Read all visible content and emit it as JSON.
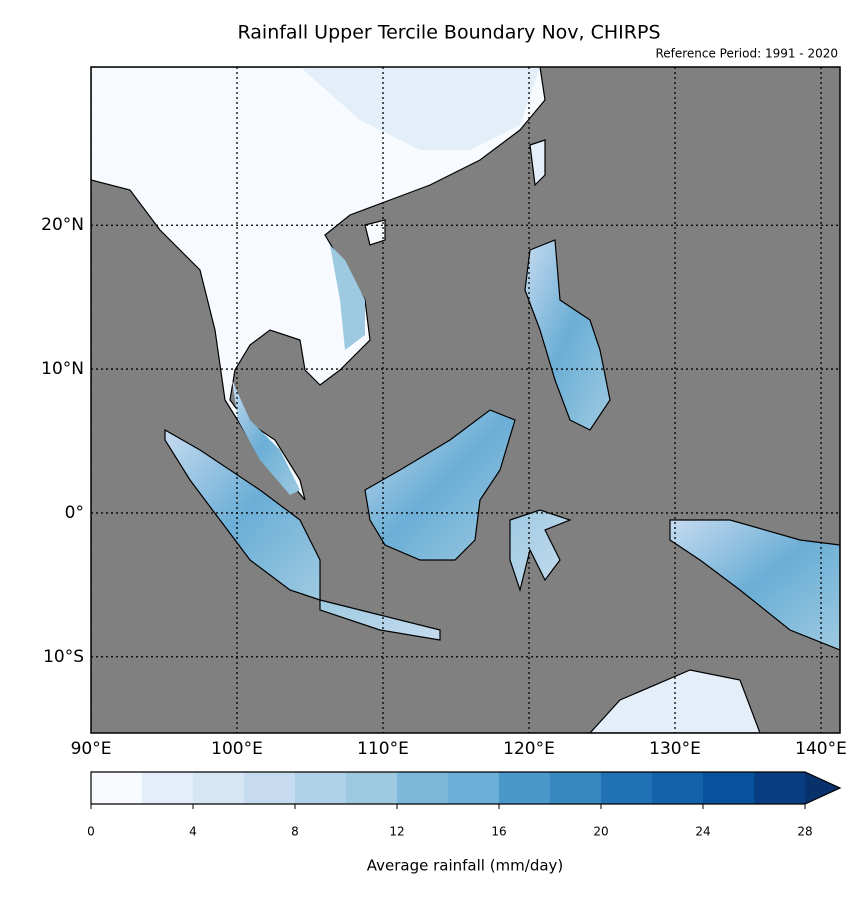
{
  "chart_data": {
    "type": "map",
    "title": "Rainfall Upper Tercile Boundary Nov, CHIRPS",
    "subtitle": "Reference Period: 1991 - 2020",
    "xlim": [
      90,
      141.3
    ],
    "ylim": [
      -15.3,
      31
    ],
    "xticks": [
      {
        "value": 90,
        "label": "90°E"
      },
      {
        "value": 100,
        "label": "100°E"
      },
      {
        "value": 110,
        "label": "110°E"
      },
      {
        "value": 120,
        "label": "120°E"
      },
      {
        "value": 130,
        "label": "130°E"
      },
      {
        "value": 140,
        "label": "140°E"
      }
    ],
    "yticks": [
      {
        "value": -10,
        "label": "10°S"
      },
      {
        "value": 0,
        "label": "0°"
      },
      {
        "value": 10,
        "label": "10°N"
      },
      {
        "value": 20,
        "label": "20°N"
      }
    ],
    "grid": true,
    "colorbar": {
      "label": "Average rainfall (mm/day)",
      "levels": [
        0,
        2,
        4,
        6,
        8,
        10,
        12,
        14,
        16,
        18,
        20,
        22,
        24,
        26,
        28
      ],
      "ticks": [
        0,
        4,
        8,
        12,
        16,
        20,
        24,
        28
      ],
      "colors": [
        "#f7fbff",
        "#e3eef9",
        "#d6e6f4",
        "#c6dbef",
        "#afd1e7",
        "#9ecae1",
        "#7db8da",
        "#6baed6",
        "#4a98c9",
        "#3787c0",
        "#2171b5",
        "#1361a9",
        "#08519c",
        "#083e81",
        "#08306b"
      ]
    }
  }
}
